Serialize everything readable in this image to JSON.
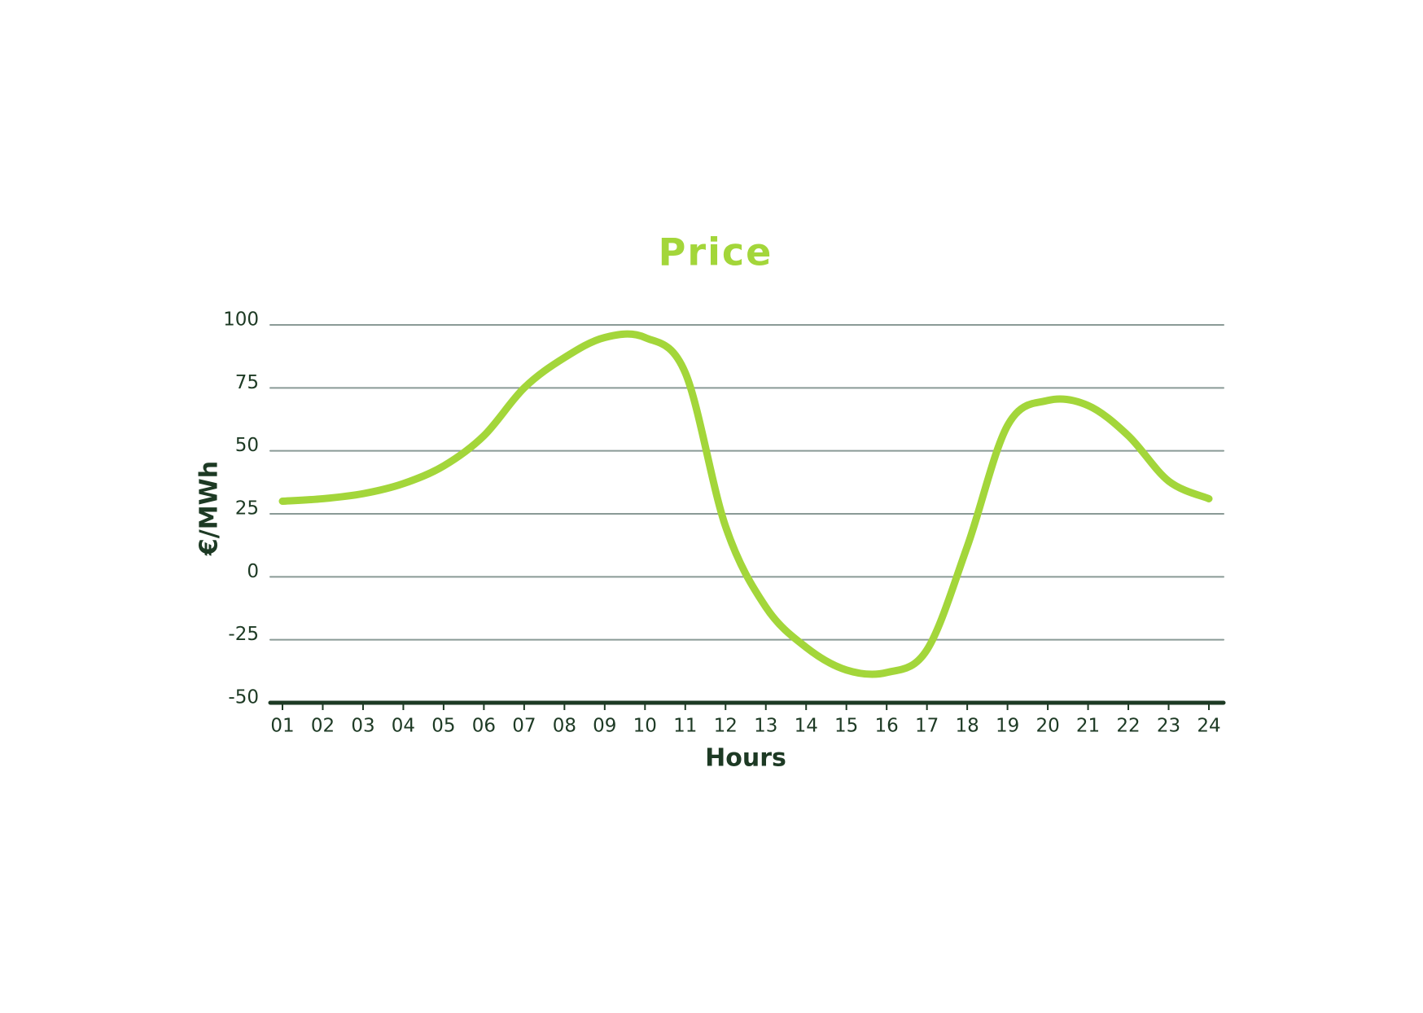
{
  "chart_data": {
    "type": "line",
    "title": "Price",
    "x_label": "Hours",
    "y_label": "€/MWh",
    "categories": [
      "01",
      "02",
      "03",
      "04",
      "05",
      "06",
      "07",
      "08",
      "09",
      "10",
      "11",
      "12",
      "13",
      "14",
      "15",
      "16",
      "17",
      "18",
      "19",
      "20",
      "21",
      "22",
      "23",
      "24"
    ],
    "values": [
      30,
      31,
      33,
      37,
      44,
      56,
      75,
      87,
      95,
      95,
      81,
      20,
      -12,
      -28,
      -37,
      -38,
      -29,
      12,
      60,
      70,
      68,
      56,
      38,
      31
    ],
    "color": "#a3d63a",
    "ylim": [
      -50,
      100
    ],
    "yticks": [
      -50,
      -25,
      0,
      25,
      50,
      75,
      100
    ],
    "grid": true
  }
}
